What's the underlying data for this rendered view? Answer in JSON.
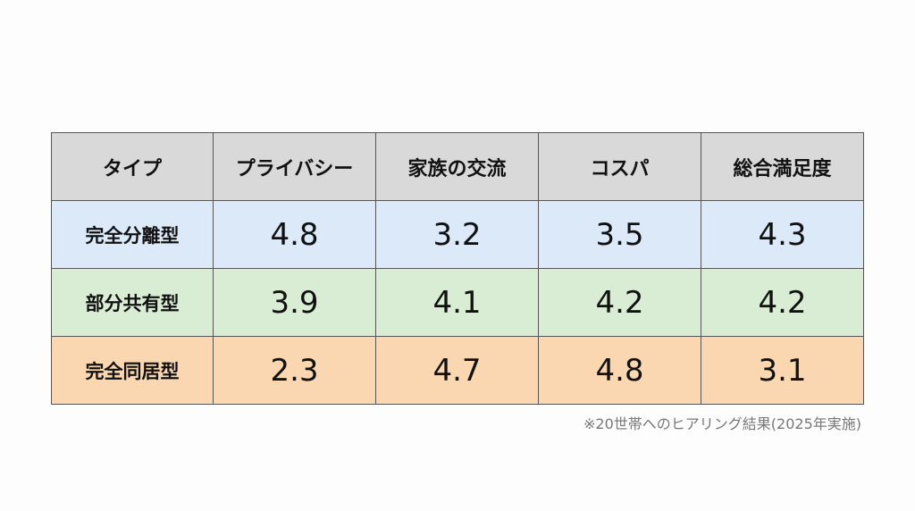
{
  "table": {
    "headers": [
      "タイプ",
      "プライバシー",
      "家族の交流",
      "コスパ",
      "総合満足度"
    ],
    "rows": [
      {
        "label": "完全分離型",
        "values": [
          "4.8",
          "3.2",
          "3.5",
          "4.3"
        ],
        "color": "#dce9f8"
      },
      {
        "label": "部分共有型",
        "values": [
          "3.9",
          "4.1",
          "4.2",
          "4.2"
        ],
        "color": "#d9edd4"
      },
      {
        "label": "完全同居型",
        "values": [
          "2.3",
          "4.7",
          "4.8",
          "3.1"
        ],
        "color": "#fad6b1"
      }
    ],
    "header_color": "#d9d9d9"
  },
  "note": "※20世帯へのヒアリング結果(2025年実施)"
}
